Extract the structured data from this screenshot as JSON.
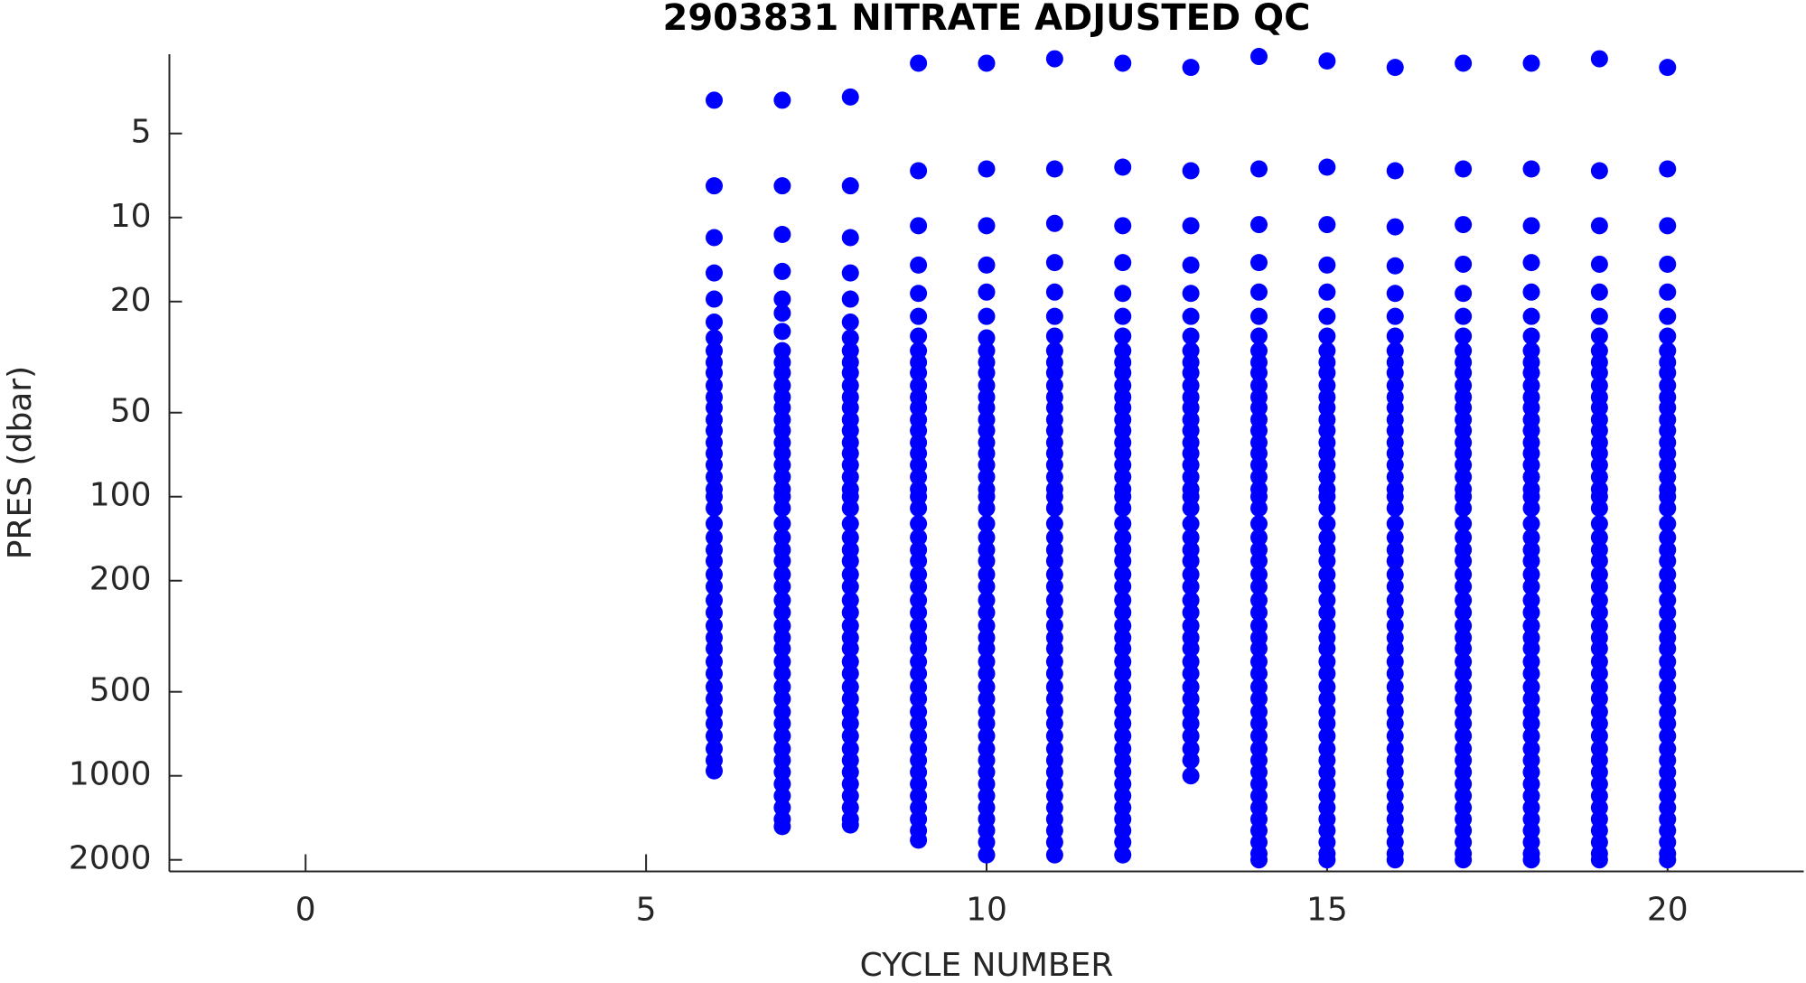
{
  "chart_data": {
    "type": "scatter",
    "title": "2903831  NITRATE ADJUSTED QC",
    "xlabel": "CYCLE NUMBER",
    "ylabel": "PRES (dbar)",
    "color": "#0000ff",
    "yscale": "log",
    "y_inverted": true,
    "xlim": [
      -2,
      22
    ],
    "xticks": [
      0,
      5,
      10,
      15,
      20
    ],
    "ylim": [
      2.6,
      2200
    ],
    "yticks": [
      5,
      10,
      20,
      50,
      100,
      200,
      500,
      1000,
      2000
    ],
    "series": [
      {
        "x": 6,
        "values": [
          3.8,
          7.7,
          11.8,
          15.8,
          19.6,
          23.7,
          27,
          30,
          33,
          36,
          40,
          44,
          48,
          53,
          58,
          64,
          70,
          77,
          85,
          94,
          100,
          110,
          125,
          140,
          155,
          170,
          190,
          210,
          235,
          260,
          290,
          320,
          350,
          390,
          430,
          480,
          530,
          590,
          650,
          720,
          800,
          880,
          960
        ]
      },
      {
        "x": 7,
        "values": [
          3.8,
          7.7,
          11.5,
          15.6,
          19.6,
          22,
          25.6,
          30,
          33,
          36,
          40,
          44,
          48,
          53,
          58,
          64,
          70,
          77,
          85,
          94,
          100,
          110,
          125,
          140,
          155,
          170,
          190,
          210,
          235,
          260,
          290,
          320,
          350,
          390,
          430,
          480,
          530,
          590,
          650,
          720,
          800,
          880,
          970,
          1070,
          1180,
          1300,
          1430,
          1520
        ]
      },
      {
        "x": 8,
        "values": [
          3.7,
          7.7,
          11.8,
          15.8,
          19.6,
          23.7,
          27,
          30,
          33,
          36,
          40,
          44,
          48,
          53,
          58,
          64,
          70,
          77,
          85,
          94,
          100,
          110,
          125,
          140,
          155,
          170,
          190,
          210,
          235,
          260,
          290,
          320,
          350,
          390,
          430,
          480,
          530,
          590,
          650,
          720,
          800,
          880,
          970,
          1070,
          1180,
          1300,
          1430,
          1500
        ]
      },
      {
        "x": 9,
        "values": [
          2.8,
          6.8,
          10.7,
          14.8,
          18.7,
          22.6,
          26.6,
          30,
          33,
          36,
          40,
          44,
          48,
          53,
          58,
          64,
          70,
          77,
          85,
          94,
          100,
          110,
          125,
          140,
          155,
          170,
          190,
          210,
          235,
          260,
          290,
          320,
          350,
          390,
          430,
          480,
          530,
          590,
          650,
          720,
          800,
          880,
          970,
          1070,
          1180,
          1300,
          1430,
          1570,
          1700
        ]
      },
      {
        "x": 10,
        "values": [
          2.8,
          6.7,
          10.7,
          14.8,
          18.5,
          22.6,
          27,
          30,
          33,
          36,
          40,
          44,
          48,
          53,
          58,
          64,
          70,
          77,
          85,
          94,
          100,
          110,
          125,
          140,
          155,
          170,
          190,
          210,
          235,
          260,
          290,
          320,
          350,
          390,
          430,
          480,
          530,
          590,
          650,
          720,
          800,
          880,
          970,
          1070,
          1180,
          1300,
          1430,
          1570,
          1730,
          1920
        ]
      },
      {
        "x": 11,
        "values": [
          2.7,
          6.7,
          10.5,
          14.5,
          18.5,
          22.6,
          26.6,
          30,
          33,
          36,
          40,
          44,
          48,
          53,
          58,
          64,
          70,
          77,
          85,
          94,
          100,
          110,
          125,
          140,
          155,
          170,
          190,
          210,
          235,
          260,
          290,
          320,
          350,
          390,
          430,
          480,
          530,
          590,
          650,
          720,
          800,
          880,
          970,
          1070,
          1180,
          1300,
          1430,
          1570,
          1730,
          1920
        ]
      },
      {
        "x": 12,
        "values": [
          2.8,
          6.6,
          10.7,
          14.5,
          18.7,
          22.6,
          26.6,
          30,
          33,
          36,
          40,
          44,
          48,
          53,
          58,
          64,
          70,
          77,
          85,
          94,
          100,
          110,
          125,
          140,
          155,
          170,
          190,
          210,
          235,
          260,
          290,
          320,
          350,
          390,
          430,
          480,
          530,
          590,
          650,
          720,
          800,
          880,
          970,
          1070,
          1180,
          1300,
          1430,
          1570,
          1730,
          1920
        ]
      },
      {
        "x": 13,
        "values": [
          2.9,
          6.8,
          10.7,
          14.8,
          18.7,
          22.6,
          26.6,
          30,
          33,
          36,
          40,
          44,
          48,
          53,
          58,
          64,
          70,
          77,
          85,
          94,
          100,
          110,
          125,
          140,
          155,
          170,
          190,
          210,
          235,
          260,
          290,
          320,
          350,
          390,
          430,
          480,
          530,
          590,
          650,
          720,
          800,
          880,
          1000
        ]
      },
      {
        "x": 14,
        "values": [
          2.65,
          6.7,
          10.6,
          14.5,
          18.5,
          22.6,
          26.6,
          30,
          33,
          36,
          40,
          44,
          48,
          53,
          58,
          64,
          70,
          77,
          85,
          94,
          100,
          110,
          125,
          140,
          155,
          170,
          190,
          210,
          235,
          260,
          290,
          320,
          350,
          390,
          430,
          480,
          530,
          590,
          650,
          720,
          800,
          880,
          970,
          1070,
          1180,
          1300,
          1430,
          1570,
          1730,
          1900,
          2000
        ]
      },
      {
        "x": 15,
        "values": [
          2.75,
          6.6,
          10.6,
          14.8,
          18.5,
          22.6,
          26.6,
          30,
          33,
          36,
          40,
          44,
          48,
          53,
          58,
          64,
          70,
          77,
          85,
          94,
          100,
          110,
          125,
          140,
          155,
          170,
          190,
          210,
          235,
          260,
          290,
          320,
          350,
          390,
          430,
          480,
          530,
          590,
          650,
          720,
          800,
          880,
          970,
          1070,
          1180,
          1300,
          1430,
          1570,
          1730,
          1900,
          2000
        ]
      },
      {
        "x": 16,
        "values": [
          2.9,
          6.8,
          10.8,
          14.9,
          18.7,
          22.6,
          26.6,
          30,
          33,
          36,
          40,
          44,
          48,
          53,
          58,
          64,
          70,
          77,
          85,
          94,
          100,
          110,
          125,
          140,
          155,
          170,
          190,
          210,
          235,
          260,
          290,
          320,
          350,
          390,
          430,
          480,
          530,
          590,
          650,
          720,
          800,
          880,
          970,
          1070,
          1180,
          1300,
          1430,
          1570,
          1730,
          1900,
          2000
        ]
      },
      {
        "x": 17,
        "values": [
          2.8,
          6.7,
          10.6,
          14.7,
          18.7,
          22.6,
          26.6,
          30,
          33,
          36,
          40,
          44,
          48,
          53,
          58,
          64,
          70,
          77,
          85,
          94,
          100,
          110,
          125,
          140,
          155,
          170,
          190,
          210,
          235,
          260,
          290,
          320,
          350,
          390,
          430,
          480,
          530,
          590,
          650,
          720,
          800,
          880,
          970,
          1070,
          1180,
          1300,
          1430,
          1570,
          1730,
          1900,
          2000
        ]
      },
      {
        "x": 18,
        "values": [
          2.8,
          6.7,
          10.7,
          14.5,
          18.5,
          22.6,
          26.6,
          30,
          33,
          36,
          40,
          44,
          48,
          53,
          58,
          64,
          70,
          77,
          85,
          94,
          100,
          110,
          125,
          140,
          155,
          170,
          190,
          210,
          235,
          260,
          290,
          320,
          350,
          390,
          430,
          480,
          530,
          590,
          650,
          720,
          800,
          880,
          970,
          1070,
          1180,
          1300,
          1430,
          1570,
          1730,
          1900,
          2000
        ]
      },
      {
        "x": 19,
        "values": [
          2.7,
          6.8,
          10.7,
          14.7,
          18.5,
          22.6,
          26.6,
          30,
          33,
          36,
          40,
          44,
          48,
          53,
          58,
          64,
          70,
          77,
          85,
          94,
          100,
          110,
          125,
          140,
          155,
          170,
          190,
          210,
          235,
          260,
          290,
          320,
          350,
          390,
          430,
          480,
          530,
          590,
          650,
          720,
          800,
          880,
          970,
          1070,
          1180,
          1300,
          1430,
          1570,
          1730,
          1900,
          2000
        ]
      },
      {
        "x": 20,
        "values": [
          2.9,
          6.7,
          10.7,
          14.7,
          18.5,
          22.6,
          26.6,
          30,
          33,
          36,
          40,
          44,
          48,
          53,
          58,
          64,
          70,
          77,
          85,
          94,
          100,
          110,
          125,
          140,
          155,
          170,
          190,
          210,
          235,
          260,
          290,
          320,
          350,
          390,
          430,
          480,
          530,
          590,
          650,
          720,
          800,
          880,
          970,
          1070,
          1180,
          1300,
          1430,
          1570,
          1730,
          1900,
          2000
        ]
      }
    ]
  }
}
